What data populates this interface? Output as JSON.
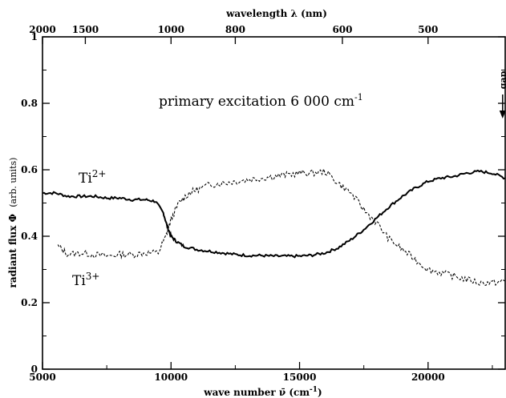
{
  "chart_data": {
    "type": "line",
    "title": "",
    "xlabel_main": "wave number",
    "xlabel_symbol": "ν̄",
    "xlabel_unit": "(cm",
    "xlabel_unit_exp": "-1",
    "xlabel_unit_close": ")",
    "x2label": "wavelength λ (nm)",
    "ylabel_main": "radiant flux Φ",
    "ylabel_unit": "(arb. units)",
    "xlim": [
      5000,
      23000
    ],
    "ylim": [
      0,
      1
    ],
    "x_ticks": [
      5000,
      10000,
      15000,
      20000
    ],
    "x_tick_labels": [
      "5000",
      "10000",
      "15000",
      "20000"
    ],
    "y_ticks": [
      0,
      0.2,
      0.4,
      0.6,
      0.8,
      1
    ],
    "y_tick_labels": [
      "0",
      "0.2",
      "0.4",
      "0.6",
      "0.8",
      "1"
    ],
    "top_ticks_nm": [
      2000,
      1500,
      1000,
      800,
      600,
      500
    ],
    "top_tick_labels": [
      "2000",
      "1500",
      "1000",
      "800",
      "600",
      "500"
    ],
    "annotation_main": "primary excitation 6 000 cm",
    "annotation_exp": "-1",
    "gap_label": "gap",
    "gap_x": 22900,
    "series": [
      {
        "name": "Ti",
        "name_sup": "2+",
        "style": "solid",
        "x": [
          5000,
          5500,
          6000,
          6500,
          7000,
          7500,
          8000,
          8500,
          9000,
          9400,
          9700,
          9850,
          10000,
          10200,
          10500,
          11000,
          11500,
          12000,
          12500,
          13000,
          13500,
          14000,
          14500,
          15000,
          15500,
          16000,
          16500,
          17000,
          17500,
          18000,
          18500,
          19000,
          19500,
          20000,
          20500,
          21000,
          21500,
          22000,
          22500,
          23000
        ],
        "y": [
          0.53,
          0.53,
          0.52,
          0.52,
          0.52,
          0.515,
          0.515,
          0.51,
          0.51,
          0.505,
          0.47,
          0.43,
          0.4,
          0.385,
          0.37,
          0.36,
          0.355,
          0.35,
          0.345,
          0.342,
          0.342,
          0.34,
          0.34,
          0.34,
          0.343,
          0.35,
          0.365,
          0.39,
          0.42,
          0.455,
          0.49,
          0.52,
          0.545,
          0.565,
          0.575,
          0.58,
          0.59,
          0.595,
          0.59,
          0.575
        ]
      },
      {
        "name": "Ti",
        "name_sup": "3+",
        "style": "dashed",
        "x": [
          5600,
          6000,
          6500,
          7000,
          7500,
          8000,
          8500,
          9000,
          9500,
          9800,
          10000,
          10300,
          10700,
          11000,
          11500,
          12000,
          12500,
          13000,
          13500,
          14000,
          14500,
          15000,
          15500,
          16000,
          16500,
          17000,
          17500,
          18000,
          18500,
          19000,
          19500,
          20000,
          20500,
          21000,
          21500,
          22000,
          22500,
          23000
        ],
        "y": [
          0.37,
          0.345,
          0.35,
          0.345,
          0.34,
          0.345,
          0.345,
          0.35,
          0.35,
          0.4,
          0.45,
          0.5,
          0.53,
          0.54,
          0.555,
          0.56,
          0.565,
          0.57,
          0.575,
          0.58,
          0.585,
          0.59,
          0.59,
          0.595,
          0.56,
          0.53,
          0.48,
          0.44,
          0.39,
          0.36,
          0.33,
          0.3,
          0.29,
          0.28,
          0.27,
          0.26,
          0.26,
          0.265
        ]
      }
    ],
    "grid": false,
    "legend": "none"
  }
}
